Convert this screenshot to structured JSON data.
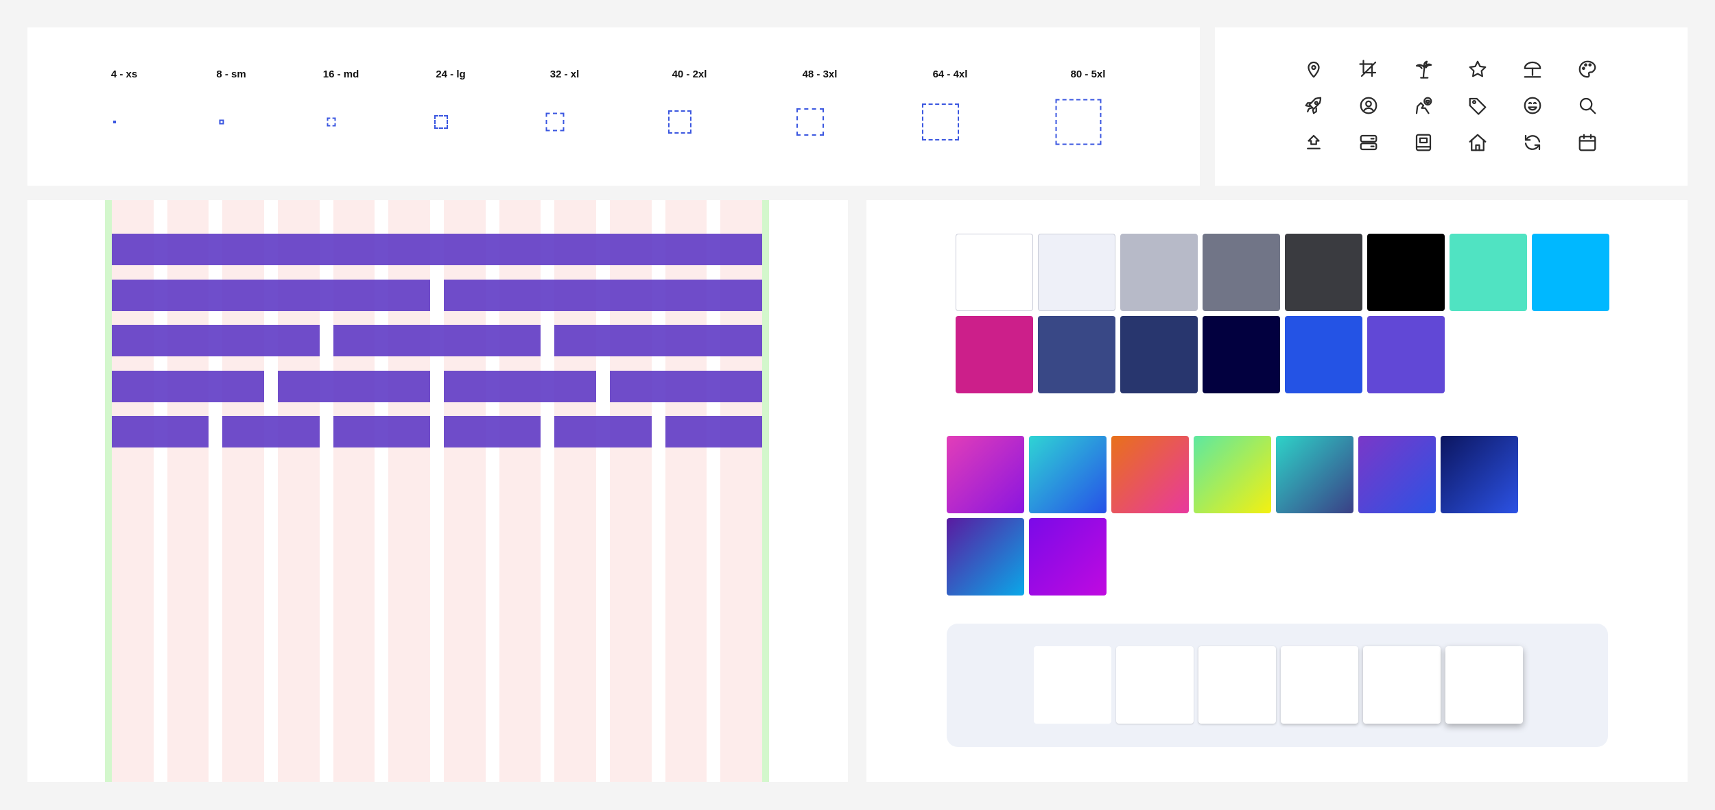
{
  "spacing": {
    "items": [
      {
        "label": "4 - xs",
        "size": 4
      },
      {
        "label": "8 - sm",
        "size": 8
      },
      {
        "label": "16 - md",
        "size": 16
      },
      {
        "label": "24 - lg",
        "size": 24
      },
      {
        "label": "32 - xl",
        "size": 32
      },
      {
        "label": "40 - 2xl",
        "size": 40
      },
      {
        "label": "48 - 3xl",
        "size": 48
      },
      {
        "label": "64 - 4xl",
        "size": 64
      },
      {
        "label": "80 - 5xl",
        "size": 80
      }
    ],
    "box_color": "#3b57e0"
  },
  "icons": [
    "map-pin-icon",
    "crop-icon",
    "palm-tree-icon",
    "star-icon",
    "beach-umbrella-icon",
    "palette-icon",
    "rocket-icon",
    "user-circle-icon",
    "pet-heart-icon",
    "tag-icon",
    "smiley-icon",
    "search-icon",
    "upload-icon",
    "server-icon",
    "book-icon",
    "home-icon",
    "refresh-icon",
    "calendar-icon"
  ],
  "grid": {
    "columns": 12,
    "rows_per_line": [
      1,
      2,
      3,
      4,
      6
    ],
    "column_color": "#fdeceb",
    "gutter_color": "#d3f7cc",
    "bar_color": "#5b35c4"
  },
  "colors": {
    "solid": [
      "#ffffff",
      "#eef0f8",
      "#b7bac8",
      "#717587",
      "#3a3b40",
      "#000000",
      "#50e3c2",
      "#00b8ff",
      "#cc1f8a",
      "#394886",
      "#28366e",
      "#02003f",
      "#2453e5",
      "#6148d6"
    ],
    "gradients": [
      [
        "#e23eb8",
        "#8a15e0"
      ],
      [
        "#2fd4d4",
        "#2650e8"
      ],
      [
        "#e8711a",
        "#e8399e"
      ],
      [
        "#5de8a0",
        "#f4f010"
      ],
      [
        "#2ed3c8",
        "#3a3f86"
      ],
      [
        "#7a38c8",
        "#2c52e4"
      ],
      [
        "#0c1660",
        "#2c52e4"
      ],
      [
        "#5a1aa0",
        "#0aa8e8"
      ],
      [
        "#7a0ae8",
        "#c00ae0"
      ]
    ],
    "shadows": [
      "none",
      "0 1px 2px rgba(0,0,0,0.15)",
      "0 1px 3px rgba(0,0,0,0.2)",
      "0 2px 4px rgba(0,0,0,0.22)",
      "0 2px 6px rgba(0,0,0,0.25)",
      "0 4px 10px rgba(0,0,0,0.3)"
    ]
  }
}
